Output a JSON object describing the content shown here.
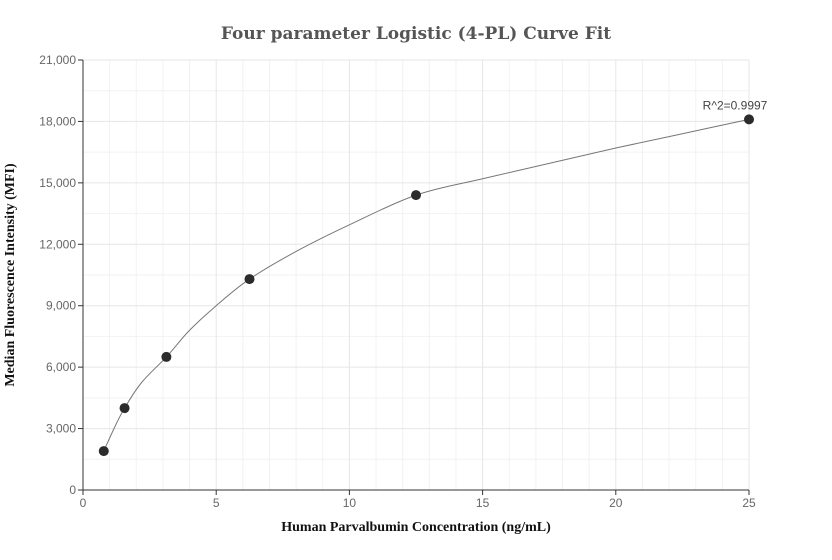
{
  "chart_data": {
    "type": "scatter",
    "title": "Four parameter Logistic (4-PL) Curve Fit",
    "xlabel": "Human Parvalbumin Concentration (ng/mL)",
    "ylabel": "Median Fluorescence Intensity (MFI)",
    "xlim": [
      0,
      25
    ],
    "ylim": [
      0,
      21000
    ],
    "x_ticks": [
      0,
      5,
      10,
      15,
      20,
      25
    ],
    "x_tick_labels": [
      "0",
      "5",
      "10",
      "15",
      "20",
      "25"
    ],
    "y_ticks": [
      0,
      3000,
      6000,
      9000,
      12000,
      15000,
      18000,
      21000
    ],
    "y_tick_labels": [
      "0",
      "3,000",
      "6,000",
      "9,000",
      "12,000",
      "15,000",
      "18,000",
      "21,000"
    ],
    "grid": true,
    "points": [
      {
        "x": 0.78,
        "y": 1900
      },
      {
        "x": 1.56,
        "y": 4000
      },
      {
        "x": 3.13,
        "y": 6500
      },
      {
        "x": 6.25,
        "y": 10300
      },
      {
        "x": 12.5,
        "y": 14400
      },
      {
        "x": 25,
        "y": 18100
      }
    ],
    "fit_curve": [
      [
        0.78,
        1900
      ],
      [
        1.2,
        3100
      ],
      [
        1.56,
        4000
      ],
      [
        2.2,
        5250
      ],
      [
        3.13,
        6500
      ],
      [
        4.0,
        7800
      ],
      [
        5.0,
        9000
      ],
      [
        6.25,
        10300
      ],
      [
        8.0,
        11650
      ],
      [
        10.0,
        12950
      ],
      [
        12.5,
        14400
      ],
      [
        15.0,
        15200
      ],
      [
        17.5,
        15950
      ],
      [
        20.0,
        16700
      ],
      [
        22.5,
        17400
      ],
      [
        25,
        18100
      ]
    ],
    "annotation": "R^2=0.9997"
  },
  "colors": {
    "point": "#2b2b2b",
    "curve": "#777777",
    "grid": "#e6e6e6",
    "minor_grid": "#f2f2f2",
    "axis": "#333333"
  }
}
